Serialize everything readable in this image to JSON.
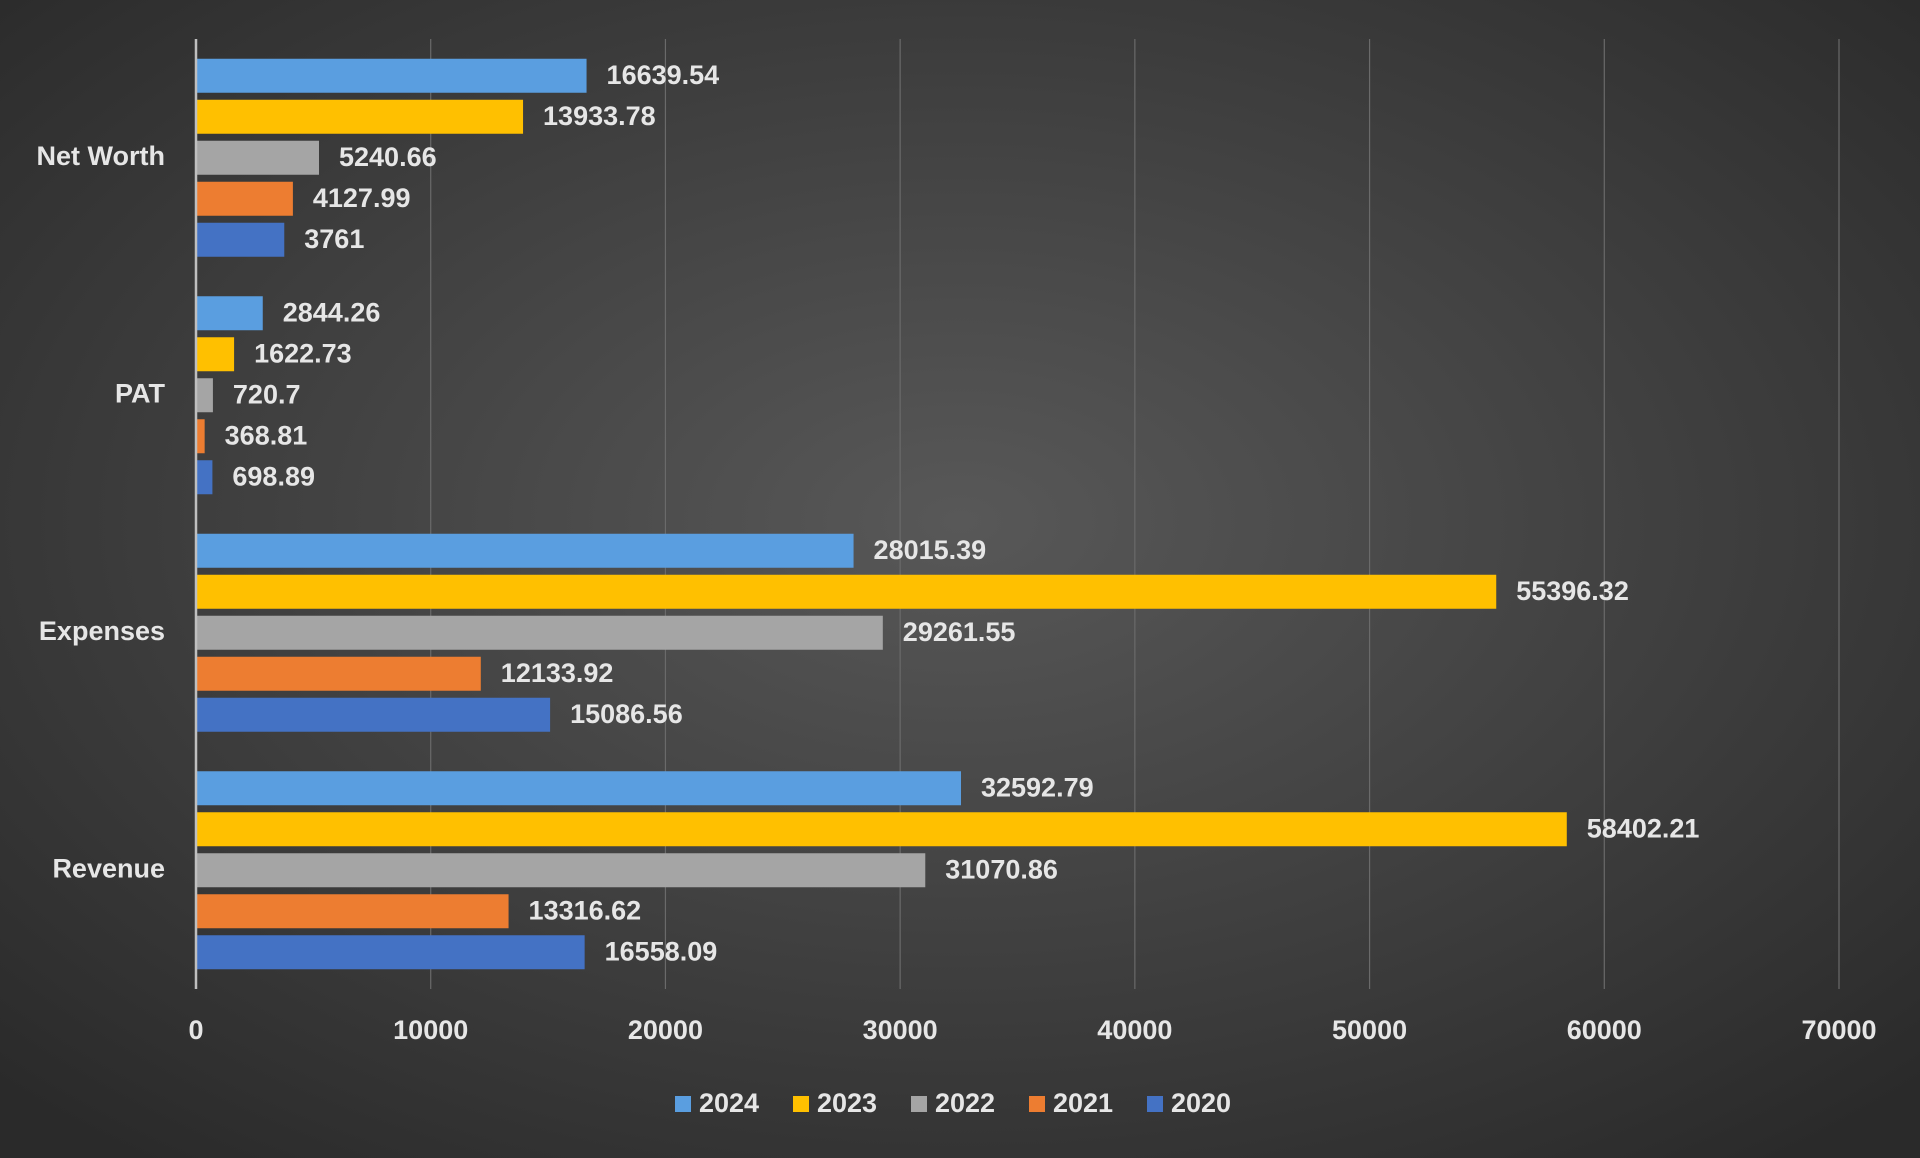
{
  "chart_data": {
    "type": "bar",
    "orientation": "horizontal",
    "categories": [
      "Revenue",
      "Expenses",
      "PAT",
      "Net Worth"
    ],
    "series": [
      {
        "name": "2024",
        "color": "#5a9ee0",
        "values": [
          32592.79,
          28015.39,
          2844.26,
          16639.54
        ]
      },
      {
        "name": "2023",
        "color": "#ffc000",
        "values": [
          58402.21,
          55396.32,
          1622.73,
          13933.78
        ]
      },
      {
        "name": "2022",
        "color": "#a5a5a5",
        "values": [
          31070.86,
          29261.55,
          720.7,
          5240.66
        ]
      },
      {
        "name": "2021",
        "color": "#ed7d31",
        "values": [
          13316.62,
          12133.92,
          368.81,
          4127.99
        ]
      },
      {
        "name": "2020",
        "color": "#4472c4",
        "values": [
          16558.09,
          15086.56,
          698.89,
          3761
        ]
      }
    ],
    "xlim": [
      0,
      70000
    ],
    "xticks": [
      0,
      10000,
      20000,
      30000,
      40000,
      50000,
      60000,
      70000
    ],
    "grid": true,
    "legend": "bottom"
  }
}
